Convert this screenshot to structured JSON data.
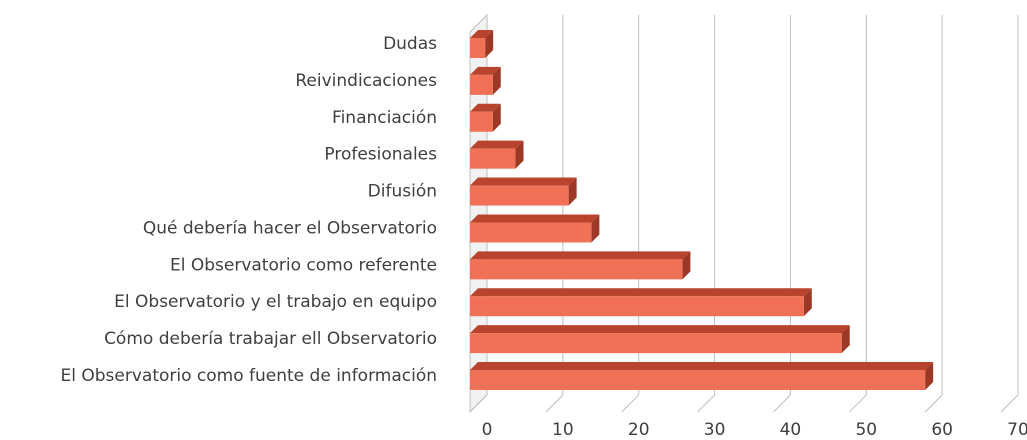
{
  "chart_data": {
    "type": "bar3d_horizontal",
    "categories": [
      "Dudas",
      "Reivindicaciones",
      "Financiación",
      "Profesionales",
      "Difusión",
      "Qué debería hacer  el Observatorio",
      "El  Observatorio como referente",
      "El Observatorio y el trabajo en equipo",
      "Cómo debería trabajar ell Observatorio",
      "El Observatorio como fuente de información"
    ],
    "values": [
      2,
      3,
      3,
      6,
      13,
      16,
      28,
      44,
      49,
      60
    ],
    "color": "#f07155",
    "xlim": [
      0,
      70
    ],
    "xticks": [
      0,
      10,
      20,
      30,
      40,
      50,
      60,
      70
    ],
    "grid": true
  }
}
